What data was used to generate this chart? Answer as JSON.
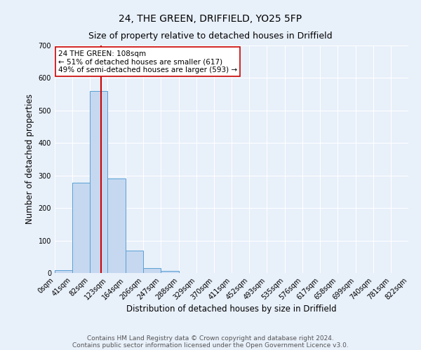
{
  "title": "24, THE GREEN, DRIFFIELD, YO25 5FP",
  "subtitle": "Size of property relative to detached houses in Driffield",
  "xlabel": "Distribution of detached houses by size in Driffield",
  "ylabel": "Number of detached properties",
  "bin_edges": [
    0,
    41,
    82,
    123,
    164,
    206,
    247,
    288,
    329,
    370,
    411,
    452,
    493,
    535,
    576,
    617,
    658,
    699,
    740,
    781,
    822
  ],
  "bar_heights": [
    8,
    278,
    561,
    290,
    70,
    15,
    6,
    0,
    0,
    0,
    0,
    0,
    0,
    0,
    0,
    0,
    0,
    0,
    0,
    0
  ],
  "bar_color": "#c5d8f0",
  "bar_edge_color": "#5a9fd4",
  "bg_color": "#e8f0fa",
  "grid_color": "#ffffff",
  "vline_x": 108,
  "vline_color": "#cc0000",
  "annotation_text": "24 THE GREEN: 108sqm\n← 51% of detached houses are smaller (617)\n49% of semi-detached houses are larger (593) →",
  "annotation_box_color": "#ffffff",
  "annotation_box_edge": "#cc0000",
  "ylim": [
    0,
    700
  ],
  "yticks": [
    0,
    100,
    200,
    300,
    400,
    500,
    600,
    700
  ],
  "tick_labels": [
    "0sqm",
    "41sqm",
    "82sqm",
    "123sqm",
    "164sqm",
    "206sqm",
    "247sqm",
    "288sqm",
    "329sqm",
    "370sqm",
    "411sqm",
    "452sqm",
    "493sqm",
    "535sqm",
    "576sqm",
    "617sqm",
    "658sqm",
    "699sqm",
    "740sqm",
    "781sqm",
    "822sqm"
  ],
  "footer_line1": "Contains HM Land Registry data © Crown copyright and database right 2024.",
  "footer_line2": "Contains public sector information licensed under the Open Government Licence v3.0.",
  "title_fontsize": 10,
  "subtitle_fontsize": 9,
  "axis_label_fontsize": 8.5,
  "tick_fontsize": 7,
  "annotation_fontsize": 7.5,
  "footer_fontsize": 6.5
}
